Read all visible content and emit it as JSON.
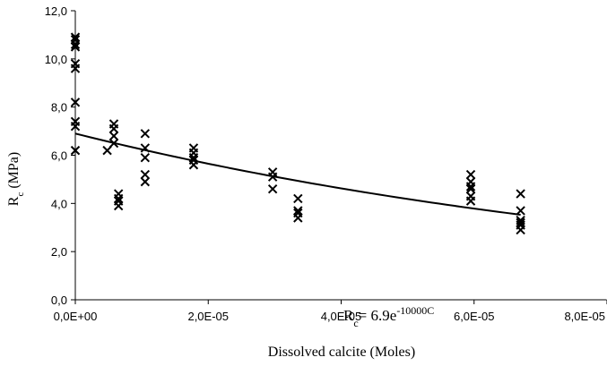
{
  "chart_data": {
    "type": "scatter",
    "title": "",
    "xlabel": "Dissolved calcite (Moles)",
    "ylabel": "R",
    "ylabel_sub": "c",
    "ylabel_unit": " (MPa)",
    "xlim": [
      0,
      8e-05
    ],
    "ylim": [
      0,
      12
    ],
    "x_ticks": [
      0,
      2e-05,
      4e-05,
      6e-05,
      8e-05
    ],
    "x_tick_labels": [
      "0,0E+00",
      "2,0E-05",
      "4,0E-05",
      "6,0E-05",
      "8,0E-05"
    ],
    "y_ticks": [
      0,
      2,
      4,
      6,
      8,
      10,
      12
    ],
    "y_tick_labels": [
      "0,0",
      "2,0",
      "4,0",
      "6,0",
      "8,0",
      "10,0",
      "12,0"
    ],
    "grid": false,
    "marker": "x",
    "series": [
      {
        "points": [
          [
            0,
            10.9
          ],
          [
            0,
            10.8
          ],
          [
            0,
            10.6
          ],
          [
            0,
            10.5
          ],
          [
            0,
            9.8
          ],
          [
            0,
            9.6
          ],
          [
            0,
            8.2
          ],
          [
            0,
            7.4
          ],
          [
            0,
            7.2
          ],
          [
            0,
            6.2
          ],
          [
            4.8e-06,
            6.2
          ],
          [
            5.8e-06,
            7.3
          ],
          [
            5.8e-06,
            7.1
          ],
          [
            5.8e-06,
            6.8
          ],
          [
            5.8e-06,
            6.5
          ],
          [
            6.5e-06,
            4.4
          ],
          [
            6.5e-06,
            4.2
          ],
          [
            6.5e-06,
            4.1
          ],
          [
            6.5e-06,
            3.9
          ],
          [
            1.05e-05,
            6.9
          ],
          [
            1.05e-05,
            6.3
          ],
          [
            1.05e-05,
            5.9
          ],
          [
            1.05e-05,
            5.2
          ],
          [
            1.05e-05,
            4.9
          ],
          [
            1.78e-05,
            6.3
          ],
          [
            1.78e-05,
            6.1
          ],
          [
            1.78e-05,
            5.9
          ],
          [
            1.78e-05,
            5.8
          ],
          [
            1.78e-05,
            5.6
          ],
          [
            2.97e-05,
            5.3
          ],
          [
            2.97e-05,
            5.1
          ],
          [
            2.97e-05,
            4.6
          ],
          [
            3.35e-05,
            4.2
          ],
          [
            3.35e-05,
            3.7
          ],
          [
            3.35e-05,
            3.6
          ],
          [
            3.35e-05,
            3.4
          ],
          [
            5.95e-05,
            5.2
          ],
          [
            5.95e-05,
            4.9
          ],
          [
            5.95e-05,
            4.7
          ],
          [
            5.95e-05,
            4.6
          ],
          [
            5.95e-05,
            4.3
          ],
          [
            5.95e-05,
            4.1
          ],
          [
            6.7e-05,
            4.4
          ],
          [
            6.7e-05,
            3.7
          ],
          [
            6.7e-05,
            3.3
          ],
          [
            6.7e-05,
            3.2
          ],
          [
            6.7e-05,
            3.1
          ],
          [
            6.7e-05,
            2.9
          ]
        ]
      }
    ],
    "trendline": {
      "type": "exponential",
      "a": 6.9,
      "b": -10000,
      "x_range": [
        0,
        6.7e-05
      ]
    },
    "annotation": {
      "base": "R",
      "sub": "c",
      "mid": "= 6.9e",
      "sup": "-10000C"
    }
  }
}
